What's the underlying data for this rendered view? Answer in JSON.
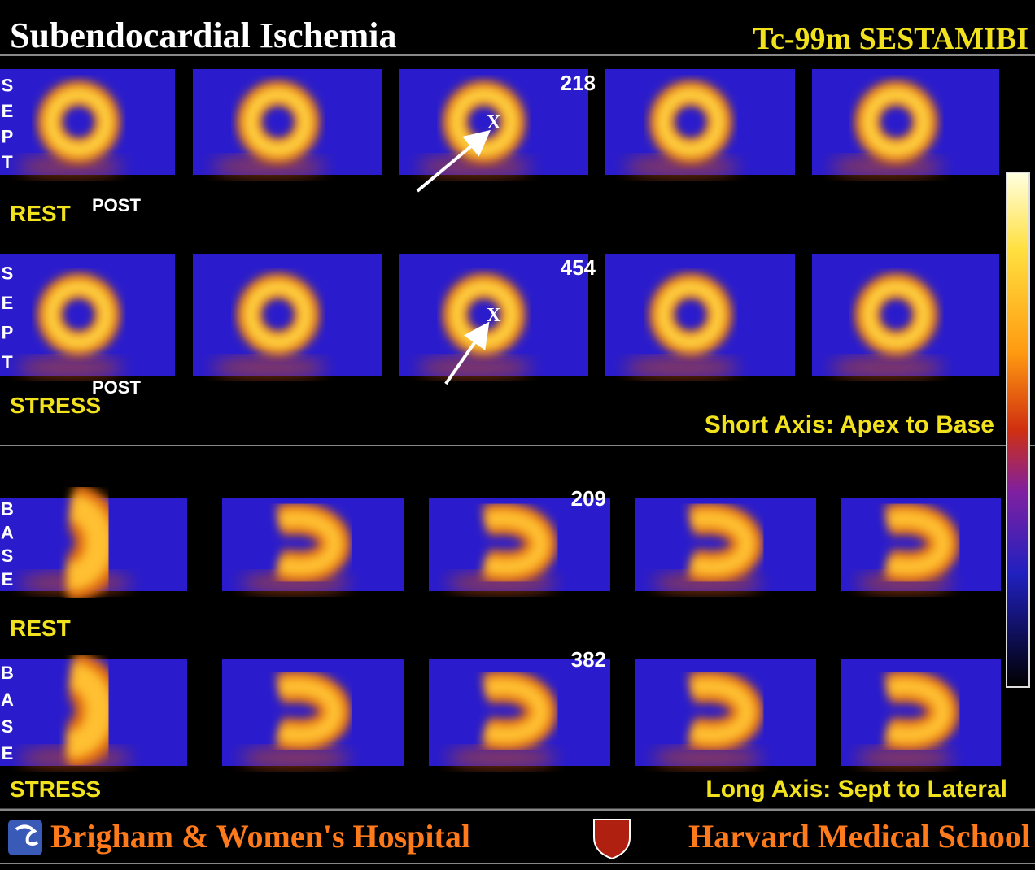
{
  "header": {
    "title": "Subendocardial Ischemia",
    "tracer": "Tc-99m SESTAMIBI"
  },
  "short_axis": {
    "caption": "Short Axis: Apex to Base",
    "orientation_letters": [
      "S",
      "E",
      "P",
      "T"
    ],
    "rows": [
      {
        "label": "REST",
        "marker": "POST",
        "count": 218,
        "target": "X"
      },
      {
        "label": "STRESS",
        "marker": "POST",
        "count": 454,
        "target": "X"
      }
    ]
  },
  "long_axis": {
    "caption": "Long Axis: Sept to Lateral",
    "orientation_letters": [
      "B",
      "A",
      "S",
      "E"
    ],
    "rows": [
      {
        "label": "REST",
        "count": 209
      },
      {
        "label": "STRESS",
        "count": 382
      }
    ]
  },
  "footer": {
    "left": "Brigham & Women's Hospital",
    "right": "Harvard Medical School"
  }
}
